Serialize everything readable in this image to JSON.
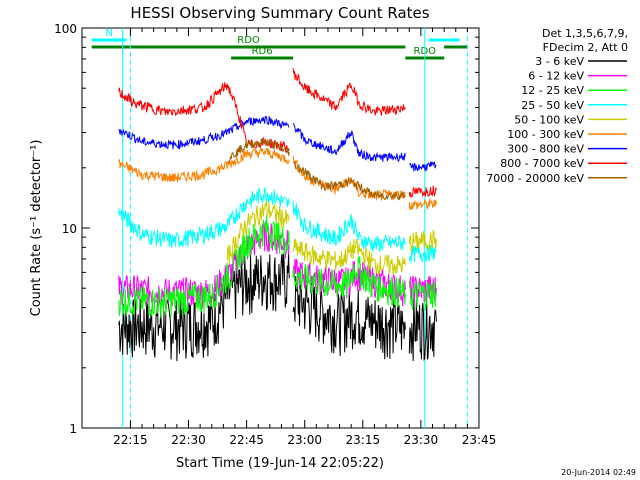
{
  "chart_data": {
    "type": "line",
    "title": "HESSI Observing Summary Count Rates",
    "xlabel": "Start Time (19-Jun-14 22:05:22)",
    "ylabel": "Count Rate (s⁻¹ detector⁻¹)",
    "yscale": "log",
    "ylim": [
      1,
      100
    ],
    "xlim_minutes": [
      22.08,
      23.75
    ],
    "x_ticks": [
      "22:15",
      "22:30",
      "22:45",
      "23:00",
      "23:15",
      "23:30",
      "23:45"
    ],
    "y_ticks": [
      "1",
      "10",
      "100"
    ],
    "legend_header": [
      "Det 1,3,5,6,7,9,",
      "FDecim 2, Att 0"
    ],
    "legend_position": "right",
    "footer": "20-Jun-2014 02:49",
    "flags": [
      {
        "label": "N",
        "color": "#00ffff",
        "start": "22:05",
        "end": "22:14"
      },
      {
        "label": "",
        "color": "#00ffff",
        "start": "23:32",
        "end": "23:40"
      },
      {
        "label": "RDO",
        "color": "#008000",
        "start": "22:05",
        "end": "23:26"
      },
      {
        "label": "RDO",
        "color": "#008000",
        "start": "23:26",
        "end": "23:36"
      },
      {
        "label": "",
        "color": "#008000",
        "start": "23:36",
        "end": "23:42"
      },
      {
        "label": "RD6",
        "color": "#008000",
        "start": "22:41",
        "end": "22:57"
      },
      {
        "label": "",
        "color": "#008000",
        "start": "23:26",
        "end": "23:36"
      }
    ],
    "vlines": [
      {
        "t": "22:15",
        "color": "#00ffff",
        "dash": true
      },
      {
        "t": "23:42",
        "color": "#00ffff",
        "dash": true
      },
      {
        "t": "22:13",
        "color": "#00ffff",
        "dash": false
      },
      {
        "t": "23:31",
        "color": "#00ffff",
        "dash": false
      }
    ],
    "series": [
      {
        "name": "3 - 6 keV",
        "color": "#000000",
        "segments": [
          {
            "x": [
              "22:12",
              "22:20",
              "22:28",
              "22:36",
              "22:41",
              "22:45",
              "22:50",
              "22:56"
            ],
            "y": [
              3.3,
              3.3,
              3.3,
              3.5,
              4.8,
              5.5,
              5.8,
              5.6
            ]
          },
          {
            "x": [
              "22:57",
              "23:03",
              "23:09",
              "23:13",
              "23:17",
              "23:24",
              "23:26"
            ],
            "y": [
              4.5,
              4.0,
              3.5,
              3.8,
              3.5,
              3.3,
              3.1
            ]
          },
          {
            "x": [
              "23:27",
              "23:34"
            ],
            "y": [
              3.3,
              3.4
            ]
          }
        ]
      },
      {
        "name": "6 - 12 keV",
        "color": "#ff00ff",
        "segments": [
          {
            "x": [
              "22:12",
              "22:24",
              "22:36",
              "22:41",
              "22:45",
              "22:50",
              "22:56"
            ],
            "y": [
              5.0,
              4.8,
              4.8,
              6.0,
              8.0,
              9.3,
              8.3
            ]
          },
          {
            "x": [
              "22:57",
              "23:05",
              "23:11",
              "23:13",
              "23:17",
              "23:26"
            ],
            "y": [
              6.0,
              5.5,
              5.4,
              6.0,
              5.5,
              4.9
            ]
          },
          {
            "x": [
              "23:27",
              "23:34"
            ],
            "y": [
              4.9,
              5.0
            ]
          }
        ]
      },
      {
        "name": "12 - 25 keV",
        "color": "#00ff00",
        "segments": [
          {
            "x": [
              "22:12",
              "22:24",
              "22:36",
              "22:41",
              "22:45",
              "22:50",
              "22:56"
            ],
            "y": [
              4.4,
              4.3,
              4.6,
              6.0,
              8.5,
              10.0,
              8.4
            ]
          },
          {
            "x": [
              "22:57",
              "23:05",
              "23:11",
              "23:13",
              "23:17",
              "23:26"
            ],
            "y": [
              5.8,
              5.3,
              5.2,
              6.5,
              5.3,
              4.7
            ]
          },
          {
            "x": [
              "23:27",
              "23:34"
            ],
            "y": [
              4.6,
              4.8
            ]
          }
        ]
      },
      {
        "name": "25 - 50 keV",
        "color": "#00ffff",
        "segments": [
          {
            "x": [
              "22:12",
              "22:18",
              "22:26",
              "22:34",
              "22:40",
              "22:45",
              "22:50",
              "22:56"
            ],
            "y": [
              12.0,
              9.3,
              8.6,
              9.3,
              10.2,
              13.5,
              15.0,
              13.0
            ]
          },
          {
            "x": [
              "22:57",
              "23:00",
              "23:08",
              "23:12",
              "23:14",
              "23:18",
              "23:26"
            ],
            "y": [
              13.0,
              10.3,
              8.8,
              11.0,
              8.8,
              8.3,
              8.5
            ]
          },
          {
            "x": [
              "23:27",
              "23:34"
            ],
            "y": [
              7.4,
              7.6
            ]
          }
        ]
      },
      {
        "name": "50 - 100 keV",
        "color": "#cccc00",
        "segments": [
          {
            "x": [
              "22:40",
              "22:45",
              "22:50",
              "22:56"
            ],
            "y": [
              7.0,
              10.5,
              12.5,
              10.8
            ]
          },
          {
            "x": [
              "22:57",
              "23:03",
              "23:09",
              "23:13",
              "23:18",
              "23:26"
            ],
            "y": [
              8.0,
              7.2,
              6.8,
              8.0,
              6.6,
              6.5
            ]
          },
          {
            "x": [
              "23:27",
              "23:34"
            ],
            "y": [
              8.5,
              8.8
            ]
          }
        ]
      },
      {
        "name": "100 - 300 keV",
        "color": "#ff8000",
        "segments": [
          {
            "x": [
              "22:12",
              "22:18",
              "22:26",
              "22:34",
              "22:40",
              "22:45",
              "22:50",
              "22:56"
            ],
            "y": [
              21.0,
              18.5,
              17.8,
              18.6,
              20.5,
              23.5,
              24.0,
              22.0
            ]
          },
          {
            "x": [
              "22:57",
              "23:00",
              "23:08",
              "23:12",
              "23:14",
              "23:18",
              "23:26"
            ],
            "y": [
              22.0,
              18.0,
              15.5,
              17.5,
              15.0,
              14.5,
              14.8
            ]
          },
          {
            "x": [
              "23:27",
              "23:34"
            ],
            "y": [
              13.0,
              13.2
            ]
          }
        ]
      },
      {
        "name": "300 - 800 keV",
        "color": "#0000ff",
        "segments": [
          {
            "x": [
              "22:12",
              "22:18",
              "22:26",
              "22:34",
              "22:40",
              "22:45",
              "22:50",
              "22:56"
            ],
            "y": [
              31.0,
              27.0,
              26.0,
              27.5,
              30.0,
              34.0,
              35.0,
              32.0
            ]
          },
          {
            "x": [
              "22:57",
              "23:00",
              "23:08",
              "23:12",
              "23:14",
              "23:18",
              "23:26"
            ],
            "y": [
              33.0,
              27.5,
              24.0,
              30.0,
              23.5,
              22.5,
              22.8
            ]
          },
          {
            "x": [
              "23:27",
              "23:34"
            ],
            "y": [
              20.0,
              20.5
            ]
          }
        ]
      },
      {
        "name": "800 - 7000 keV",
        "color": "#ff0000",
        "segments": [
          {
            "x": [
              "22:12",
              "22:16",
              "22:24",
              "22:34",
              "22:40",
              "22:45",
              "22:50",
              "22:56"
            ],
            "y": [
              48.0,
              42.0,
              38.0,
              40.0,
              52.0,
              26.0,
              27.0,
              25.0
            ]
          },
          {
            "x": [
              "22:57",
              "23:00",
              "23:08",
              "23:12",
              "23:14",
              "23:18",
              "23:26"
            ],
            "y": [
              60.0,
              50.0,
              40.0,
              52.0,
              42.0,
              38.0,
              40.0
            ]
          },
          {
            "x": [
              "23:27",
              "23:34"
            ],
            "y": [
              15.0,
              15.5
            ]
          }
        ]
      },
      {
        "name": "7000 - 20000 keV",
        "color": "#a06000",
        "segments": [
          {
            "x": [
              "22:40",
              "22:45",
              "22:50",
              "22:56"
            ],
            "y": [
              22.0,
              26.0,
              27.0,
              24.0
            ]
          },
          {
            "x": [
              "22:57",
              "23:05",
              "23:12",
              "23:18",
              "23:26"
            ],
            "y": [
              21.0,
              16.0,
              17.0,
              14.5,
              14.6
            ]
          }
        ]
      }
    ]
  }
}
